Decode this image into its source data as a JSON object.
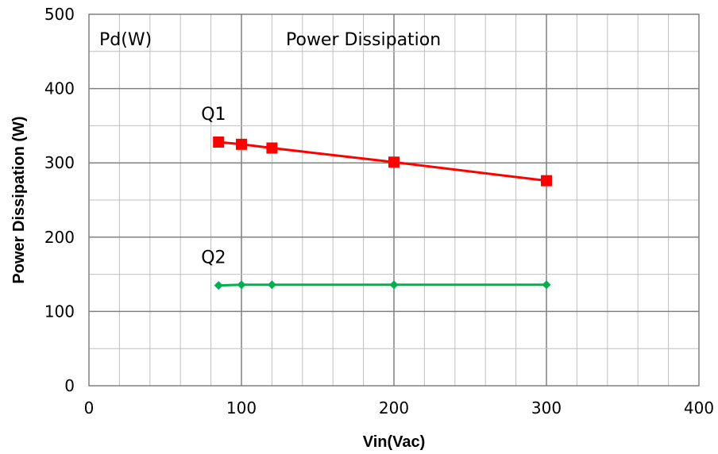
{
  "chart_data": {
    "type": "line",
    "title": "",
    "xlabel": "Vin(Vac)",
    "ylabel": "Power Dissipation (W)",
    "xlim": [
      0,
      400
    ],
    "ylim": [
      0,
      500
    ],
    "x_ticks": [
      "0",
      "100",
      "200",
      "300",
      "400"
    ],
    "y_ticks": [
      "0",
      "100",
      "200",
      "300",
      "400",
      "500"
    ],
    "grid": true,
    "legend": "none",
    "annotations": {
      "unit_label": "Pd(W)",
      "inner_title": "Power Dissipation"
    },
    "series": [
      {
        "name": "Q1",
        "color": "#ff0000",
        "marker": "square",
        "x": [
          85,
          100,
          120,
          200,
          300
        ],
        "y": [
          328,
          325,
          320,
          301,
          276
        ]
      },
      {
        "name": "Q2",
        "color": "#00b050",
        "marker": "diamond",
        "x": [
          85,
          100,
          120,
          200,
          300
        ],
        "y": [
          135,
          136,
          136,
          136,
          136
        ]
      }
    ]
  }
}
